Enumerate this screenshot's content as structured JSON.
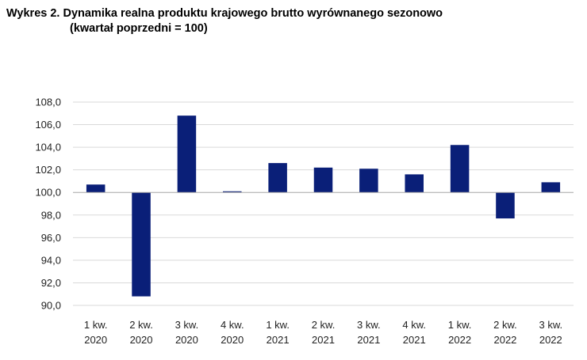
{
  "chart_data": {
    "type": "bar",
    "title": "Wykres 2. Dynamika realna produktu krajowego brutto wyrównanego sezonowo",
    "subtitle": "(kwartał poprzedni = 100)",
    "categories": [
      [
        "1 kw.",
        "2020"
      ],
      [
        "2 kw.",
        "2020"
      ],
      [
        "3 kw.",
        "2020"
      ],
      [
        "4 kw.",
        "2020"
      ],
      [
        "1 kw.",
        "2021"
      ],
      [
        "2 kw.",
        "2021"
      ],
      [
        "3 kw.",
        "2021"
      ],
      [
        "4 kw.",
        "2021"
      ],
      [
        "1 kw.",
        "2022"
      ],
      [
        "2 kw.",
        "2022"
      ],
      [
        "3 kw.",
        "2022"
      ]
    ],
    "values": [
      100.7,
      90.8,
      106.8,
      100.1,
      102.6,
      102.2,
      102.1,
      101.6,
      104.2,
      97.7,
      100.9
    ],
    "baseline": 100,
    "ylim": [
      90,
      108
    ],
    "yticks": [
      "90,0",
      "92,0",
      "94,0",
      "96,0",
      "98,0",
      "100,0",
      "102,0",
      "104,0",
      "106,0",
      "108,0"
    ],
    "ytick_values": [
      90,
      92,
      94,
      96,
      98,
      100,
      102,
      104,
      106,
      108
    ],
    "grid": true,
    "bar_color": "#0a1f78",
    "grid_color": "#d9d9d9",
    "xlabel": "",
    "ylabel": ""
  }
}
